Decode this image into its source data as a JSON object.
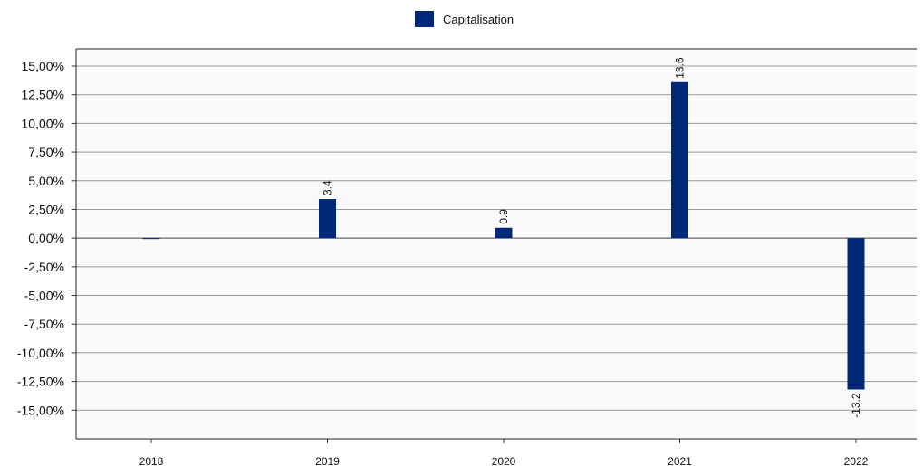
{
  "chart_data": {
    "type": "bar",
    "categories": [
      "2018",
      "2019",
      "2020",
      "2021",
      "2022"
    ],
    "series": [
      {
        "name": "Capitalisation",
        "values": [
          0,
          3.4,
          0.9,
          13.6,
          -13.2
        ],
        "data_labels": [
          "",
          "3.4",
          "0.9",
          "13.6",
          "-13.2"
        ],
        "color": "#002878"
      }
    ],
    "y_ticks": [
      15,
      12.5,
      10,
      7.5,
      5,
      2.5,
      0,
      -2.5,
      -5,
      -7.5,
      -10,
      -12.5,
      -15
    ],
    "y_tick_labels": [
      "15,00%",
      "12,50%",
      "10,00%",
      "7,50%",
      "5,00%",
      "2,50%",
      "0,00%",
      "-2,50%",
      "-5,00%",
      "-7,50%",
      "-10,00%",
      "-12,50%",
      "-15,00%"
    ],
    "ylim": [
      -17.5,
      16.5
    ],
    "xlabel": "",
    "ylabel": "",
    "grid": true,
    "legend_position": "top-center",
    "plot_background": "#fafafa",
    "grid_color": "#999999"
  }
}
